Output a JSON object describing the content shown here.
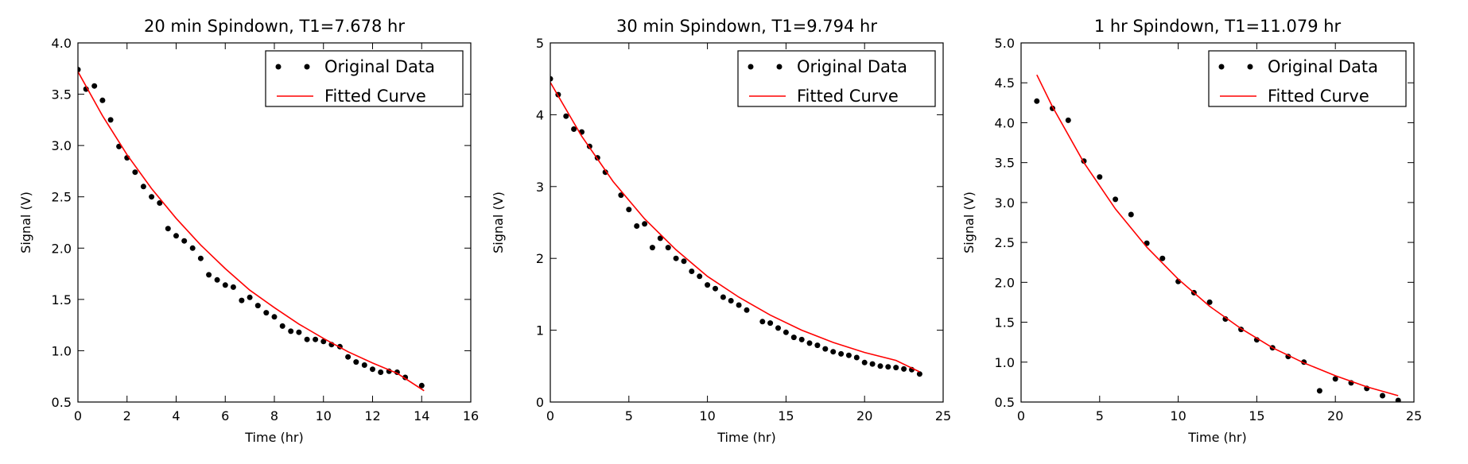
{
  "colors": {
    "data_points": "#000000",
    "fitted_curve": "#ff0000",
    "frame": "#000000"
  },
  "chart_data": [
    {
      "type": "scatter",
      "title": "20 min Spindown, T1=7.678 hr",
      "xlabel": "Time (hr)",
      "ylabel": "Signal (V)",
      "xlim": [
        0,
        16
      ],
      "ylim": [
        0.5,
        4.0
      ],
      "xticks": [
        0,
        2,
        4,
        6,
        8,
        10,
        12,
        14,
        16
      ],
      "yticks": [
        0.5,
        1.0,
        1.5,
        2.0,
        2.5,
        3.0,
        3.5,
        4.0
      ],
      "xtick_labels": [
        "0",
        "2",
        "4",
        "6",
        "8",
        "10",
        "12",
        "14",
        "16"
      ],
      "ytick_labels": [
        "0.5",
        "1.0",
        "1.5",
        "2.0",
        "2.5",
        "3.0",
        "3.5",
        "4.0"
      ],
      "legend_position": "top-right",
      "series": [
        {
          "name": "Original Data",
          "style": "points",
          "x": [
            0.0,
            0.33,
            0.67,
            1.0,
            1.33,
            1.67,
            2.0,
            2.33,
            2.67,
            3.0,
            3.33,
            3.67,
            4.0,
            4.33,
            4.67,
            5.0,
            5.33,
            5.67,
            6.0,
            6.33,
            6.67,
            7.0,
            7.33,
            7.67,
            8.0,
            8.33,
            8.67,
            9.0,
            9.33,
            9.67,
            10.0,
            10.33,
            10.67,
            11.0,
            11.33,
            11.67,
            12.0,
            12.33,
            12.67,
            13.0,
            13.33,
            14.0
          ],
          "y": [
            3.74,
            3.55,
            3.58,
            3.44,
            3.25,
            2.99,
            2.88,
            2.74,
            2.6,
            2.5,
            2.44,
            2.19,
            2.12,
            2.07,
            2.0,
            1.9,
            1.74,
            1.69,
            1.64,
            1.62,
            1.49,
            1.52,
            1.44,
            1.37,
            1.33,
            1.24,
            1.19,
            1.18,
            1.11,
            1.11,
            1.09,
            1.06,
            1.04,
            0.94,
            0.89,
            0.86,
            0.82,
            0.79,
            0.8,
            0.79,
            0.74,
            0.66
          ]
        },
        {
          "name": "Fitted Curve",
          "style": "line",
          "x": [
            0,
            1,
            2,
            3,
            4,
            5,
            6,
            7,
            8,
            9,
            10,
            11,
            12,
            13,
            14.1
          ],
          "y": [
            3.72,
            3.29,
            2.91,
            2.58,
            2.29,
            2.03,
            1.8,
            1.59,
            1.42,
            1.26,
            1.12,
            0.99,
            0.88,
            0.78,
            0.61
          ]
        }
      ]
    },
    {
      "type": "scatter",
      "title": "30 min Spindown, T1=9.794 hr",
      "xlabel": "Time (hr)",
      "ylabel": "Signal (V)",
      "xlim": [
        0,
        25
      ],
      "ylim": [
        0,
        5
      ],
      "xticks": [
        0,
        5,
        10,
        15,
        20,
        25
      ],
      "yticks": [
        0,
        1,
        2,
        3,
        4,
        5
      ],
      "xtick_labels": [
        "0",
        "5",
        "10",
        "15",
        "20",
        "25"
      ],
      "ytick_labels": [
        "0",
        "1",
        "2",
        "3",
        "4",
        "5"
      ],
      "legend_position": "top-right",
      "series": [
        {
          "name": "Original Data",
          "style": "points",
          "x": [
            0.0,
            0.5,
            1.0,
            1.5,
            2.0,
            2.5,
            3.0,
            3.5,
            4.5,
            5.0,
            5.5,
            6.0,
            6.5,
            7.0,
            7.5,
            8.0,
            8.5,
            9.0,
            9.5,
            10.0,
            10.5,
            11.0,
            11.5,
            12.0,
            12.5,
            13.5,
            14.0,
            14.5,
            15.0,
            15.5,
            16.0,
            16.5,
            17.0,
            17.5,
            18.0,
            18.5,
            19.0,
            19.5,
            20.0,
            20.5,
            21.0,
            21.5,
            22.0,
            22.5,
            23.0,
            23.5
          ],
          "y": [
            4.5,
            4.28,
            3.98,
            3.8,
            3.76,
            3.56,
            3.4,
            3.2,
            2.88,
            2.68,
            2.45,
            2.48,
            2.15,
            2.28,
            2.15,
            2.0,
            1.96,
            1.82,
            1.75,
            1.63,
            1.58,
            1.46,
            1.41,
            1.35,
            1.28,
            1.12,
            1.1,
            1.03,
            0.97,
            0.9,
            0.87,
            0.82,
            0.79,
            0.74,
            0.7,
            0.67,
            0.65,
            0.62,
            0.55,
            0.53,
            0.5,
            0.49,
            0.48,
            0.46,
            0.45,
            0.39
          ]
        },
        {
          "name": "Fitted Curve",
          "style": "line",
          "x": [
            0,
            2,
            4,
            6,
            8,
            10,
            12,
            14,
            16,
            18,
            20,
            22,
            23.5
          ],
          "y": [
            4.45,
            3.7,
            3.07,
            2.55,
            2.12,
            1.75,
            1.46,
            1.21,
            1.0,
            0.83,
            0.69,
            0.58,
            0.42
          ]
        }
      ]
    },
    {
      "type": "scatter",
      "title": "1 hr Spindown, T1=11.079 hr",
      "xlabel": "Time (hr)",
      "ylabel": "Signal (V)",
      "xlim": [
        0,
        25
      ],
      "ylim": [
        0.5,
        5.0
      ],
      "xticks": [
        0,
        5,
        10,
        15,
        20,
        25
      ],
      "yticks": [
        0.5,
        1.0,
        1.5,
        2.0,
        2.5,
        3.0,
        3.5,
        4.0,
        4.5,
        5.0
      ],
      "xtick_labels": [
        "0",
        "5",
        "10",
        "15",
        "20",
        "25"
      ],
      "ytick_labels": [
        "0.5",
        "1.0",
        "1.5",
        "2.0",
        "2.5",
        "3.0",
        "3.5",
        "4.0",
        "4.5",
        "5.0"
      ],
      "legend_position": "top-right",
      "series": [
        {
          "name": "Original Data",
          "style": "points",
          "x": [
            1,
            2,
            3,
            4,
            5,
            6,
            7,
            8,
            9,
            10,
            11,
            12,
            13,
            14,
            15,
            16,
            17,
            18,
            19,
            20,
            21,
            22,
            23,
            24
          ],
          "y": [
            4.27,
            4.18,
            4.03,
            3.52,
            3.32,
            3.04,
            2.85,
            2.49,
            2.3,
            2.01,
            1.87,
            1.75,
            1.54,
            1.41,
            1.28,
            1.18,
            1.07,
            1.0,
            0.64,
            0.79,
            0.74,
            0.67,
            0.58,
            0.52
          ]
        },
        {
          "name": "Fitted Curve",
          "style": "line",
          "x": [
            1,
            2,
            4,
            6,
            8,
            10,
            12,
            14,
            16,
            18,
            20,
            22,
            24
          ],
          "y": [
            4.6,
            4.2,
            3.5,
            2.92,
            2.44,
            2.04,
            1.7,
            1.42,
            1.18,
            0.99,
            0.83,
            0.69,
            0.58
          ]
        }
      ]
    }
  ]
}
